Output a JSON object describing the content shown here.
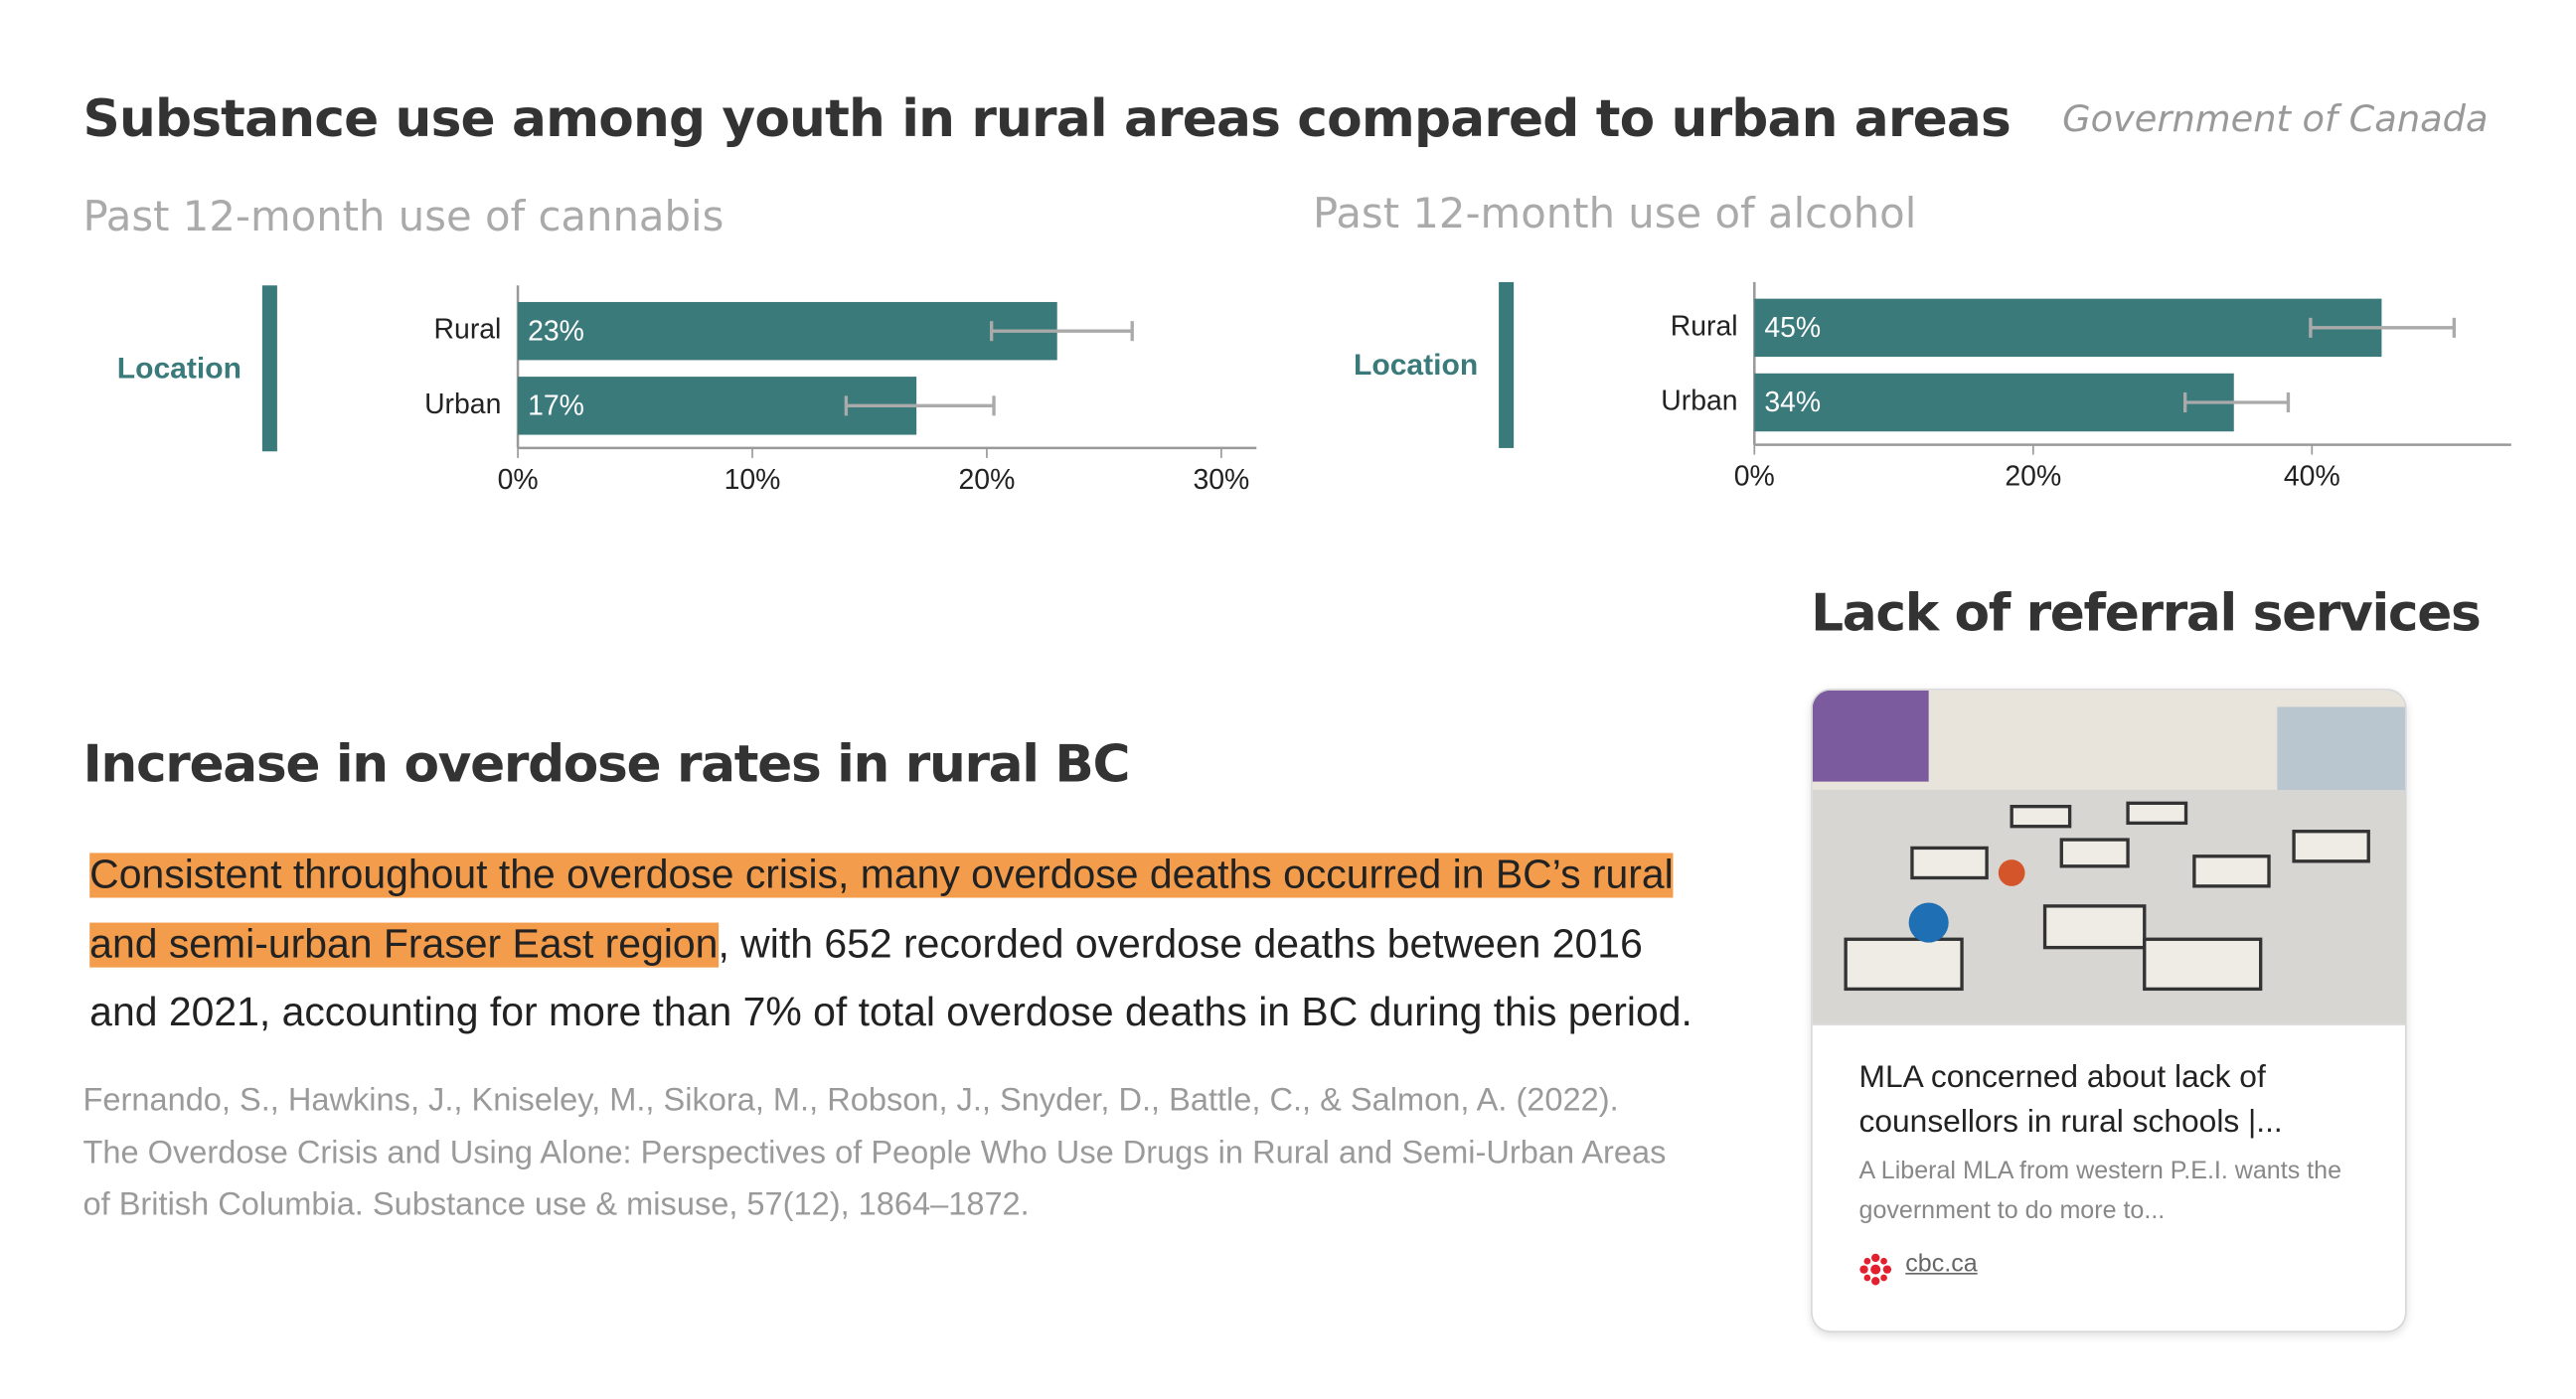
{
  "title": "Substance use among youth in rural areas compared to urban areas",
  "source": "Government of Canada",
  "chart_data": [
    {
      "type": "bar",
      "orientation": "horizontal",
      "title": "Past 12-month use of cannabis",
      "y_label": "Location",
      "categories": [
        "Rural",
        "Urban"
      ],
      "values": [
        23,
        17
      ],
      "value_labels": [
        "23%",
        "17%"
      ],
      "error_low": [
        20.2,
        14.0
      ],
      "error_high": [
        26.2,
        20.3
      ],
      "color": "#3b7a7b",
      "xlim": [
        0,
        31.5
      ],
      "xticks": [
        {
          "value": 0,
          "label": "0%"
        },
        {
          "value": 10,
          "label": "10%"
        },
        {
          "value": 20,
          "label": "20%"
        },
        {
          "value": 30,
          "label": "30%"
        }
      ],
      "grid": false
    },
    {
      "type": "bar",
      "orientation": "horizontal",
      "title": "Past 12-month use of alcohol",
      "y_label": "Location",
      "categories": [
        "Rural",
        "Urban"
      ],
      "values": [
        45,
        34.4
      ],
      "value_labels": [
        "45%",
        "34%"
      ],
      "error_low": [
        39.9,
        30.9
      ],
      "error_high": [
        50.2,
        38.3
      ],
      "color": "#3b7a7b",
      "xlim": [
        0,
        54.3
      ],
      "xticks": [
        {
          "value": 0,
          "label": "0%"
        },
        {
          "value": 20,
          "label": "20%"
        },
        {
          "value": 40,
          "label": "40%"
        }
      ],
      "grid": false
    }
  ],
  "overdose": {
    "title": "Increase in overdose rates in rural BC",
    "highlight": "Consistent throughout the overdose crisis, many overdose deaths occurred in BC’s rural and semi-urban Fraser East region",
    "text": ", with 652 recorded overdose deaths between 2016 and 2021, accounting for more than 7% of total overdose deaths in BC during this period.",
    "citation": "Fernando, S., Hawkins, J., Kniseley, M., Sikora, M., Robson, J., Snyder, D., Battle, C., & Salmon, A. (2022). The Overdose Crisis and Using Alone: Perspectives of People Who Use Drugs in Rural and Semi-Urban Areas of British Columbia. Substance use & misuse, 57(12), 1864–1872."
  },
  "referral": {
    "title": "Lack of referral services",
    "card": {
      "headline": "MLA concerned about lack of counsellors in rural schools |...",
      "description": "A Liberal MLA from western P.E.I. wants the government to do more to...",
      "domain": "cbc.ca"
    }
  }
}
